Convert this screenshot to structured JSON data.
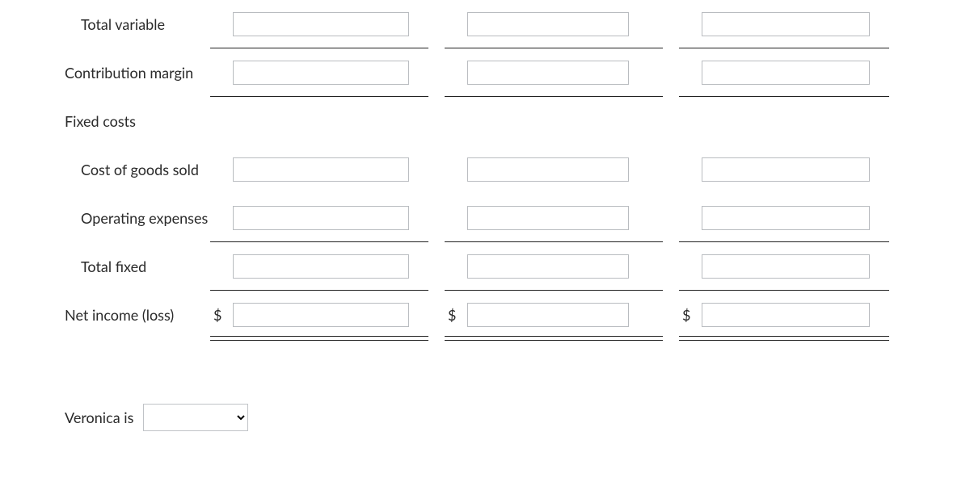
{
  "rows": [
    {
      "label": "Total variable",
      "indent": 1,
      "inputs": [
        {
          "value": "",
          "prefix": ""
        },
        {
          "value": "",
          "prefix": ""
        },
        {
          "value": "",
          "prefix": ""
        }
      ],
      "rule": "single"
    },
    {
      "label": "Contribution margin",
      "indent": 0,
      "inputs": [
        {
          "value": "",
          "prefix": ""
        },
        {
          "value": "",
          "prefix": ""
        },
        {
          "value": "",
          "prefix": ""
        }
      ],
      "rule": "single"
    },
    {
      "label": "Fixed costs",
      "indent": 0,
      "inputs": null,
      "rule": ""
    },
    {
      "label": "Cost of goods sold",
      "indent": 1,
      "inputs": [
        {
          "value": "",
          "prefix": ""
        },
        {
          "value": "",
          "prefix": ""
        },
        {
          "value": "",
          "prefix": ""
        }
      ],
      "rule": ""
    },
    {
      "label": "Operating expenses",
      "indent": 1,
      "inputs": [
        {
          "value": "",
          "prefix": ""
        },
        {
          "value": "",
          "prefix": ""
        },
        {
          "value": "",
          "prefix": ""
        }
      ],
      "rule": "single"
    },
    {
      "label": "Total fixed",
      "indent": 1,
      "inputs": [
        {
          "value": "",
          "prefix": ""
        },
        {
          "value": "",
          "prefix": ""
        },
        {
          "value": "",
          "prefix": ""
        }
      ],
      "rule": "single"
    },
    {
      "label": "Net income (loss)",
      "indent": 0,
      "inputs": [
        {
          "value": "",
          "prefix": "$"
        },
        {
          "value": "",
          "prefix": "$"
        },
        {
          "value": "",
          "prefix": "$"
        }
      ],
      "rule": "double"
    }
  ],
  "veronica": {
    "label": "Veronica is",
    "selected": "",
    "options": []
  },
  "colors": {
    "text": "#2b2b2b",
    "border": "#b9bcc0",
    "rule": "#222222",
    "background": "#ffffff"
  }
}
